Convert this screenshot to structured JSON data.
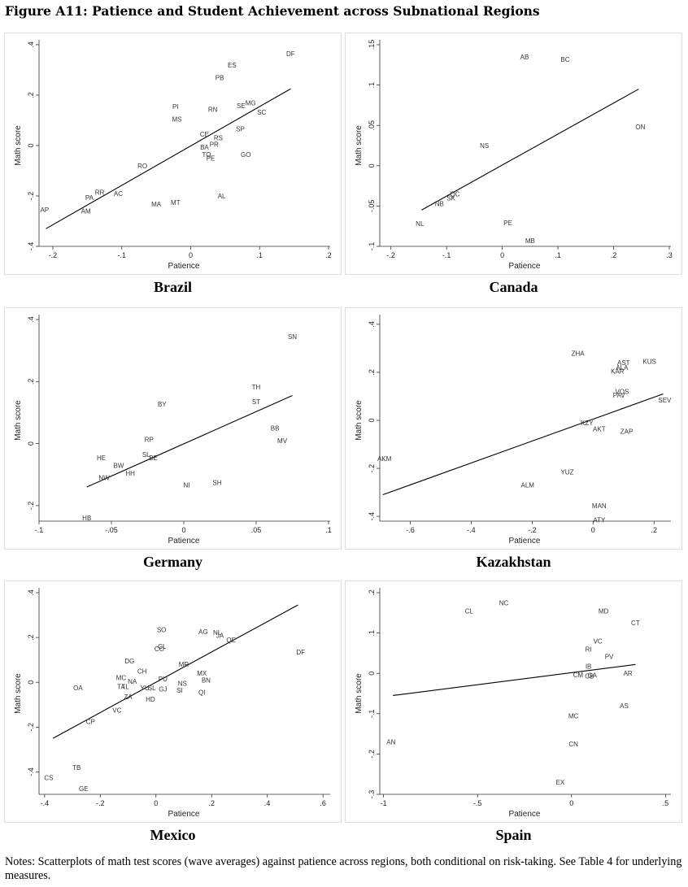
{
  "figure": {
    "title": "Figure A11: Patience and Student Achievement across Subnational Regions",
    "notes": "Notes: Scatterplots of math test scores (wave averages) against patience across regions, both conditional on risk-taking. See Table 4 for underlying measures."
  },
  "chart_data": [
    {
      "type": "scatter",
      "title": "Brazil",
      "xlabel": "Patience",
      "ylabel": "Math score",
      "xlim": [
        -0.22,
        0.2
      ],
      "ylim": [
        -0.4,
        0.4
      ],
      "xticks": [
        -0.2,
        -0.1,
        0,
        0.1,
        0.2
      ],
      "xtick_labels": [
        "-.2",
        "-.1",
        "0",
        ".1",
        ".2"
      ],
      "yticks": [
        -0.4,
        -0.2,
        0,
        0.2,
        0.4
      ],
      "ytick_labels": [
        "-.4",
        "-.2",
        "0",
        ".2",
        ".4"
      ],
      "fit_line": [
        [
          -0.21,
          -0.33
        ],
        [
          0.145,
          0.225
        ]
      ],
      "points": [
        {
          "label": "DF",
          "x": 0.145,
          "y": 0.365
        },
        {
          "label": "ES",
          "x": 0.06,
          "y": 0.32
        },
        {
          "label": "PB",
          "x": 0.042,
          "y": 0.27
        },
        {
          "label": "PI",
          "x": -0.022,
          "y": 0.155
        },
        {
          "label": "MS",
          "x": -0.02,
          "y": 0.105
        },
        {
          "label": "RN",
          "x": 0.032,
          "y": 0.143
        },
        {
          "label": "SE",
          "x": 0.073,
          "y": 0.158
        },
        {
          "label": "MG",
          "x": 0.087,
          "y": 0.17
        },
        {
          "label": "SC",
          "x": 0.103,
          "y": 0.132
        },
        {
          "label": "SP",
          "x": 0.072,
          "y": 0.066
        },
        {
          "label": "CE",
          "x": 0.02,
          "y": 0.045
        },
        {
          "label": "RS",
          "x": 0.04,
          "y": 0.03
        },
        {
          "label": "PR",
          "x": 0.034,
          "y": 0.005
        },
        {
          "label": "BA",
          "x": 0.02,
          "y": -0.007
        },
        {
          "label": "TO",
          "x": 0.023,
          "y": -0.036
        },
        {
          "label": "PE",
          "x": 0.029,
          "y": -0.05
        },
        {
          "label": "GO",
          "x": 0.08,
          "y": -0.035
        },
        {
          "label": "RO",
          "x": -0.07,
          "y": -0.08
        },
        {
          "label": "RR",
          "x": -0.132,
          "y": -0.185
        },
        {
          "label": "AC",
          "x": -0.105,
          "y": -0.19
        },
        {
          "label": "PA",
          "x": -0.147,
          "y": -0.207
        },
        {
          "label": "AL",
          "x": 0.045,
          "y": -0.2
        },
        {
          "label": "MT",
          "x": -0.022,
          "y": -0.225
        },
        {
          "label": "MA",
          "x": -0.05,
          "y": -0.233
        },
        {
          "label": "AM",
          "x": -0.152,
          "y": -0.26
        },
        {
          "label": "AP",
          "x": -0.212,
          "y": -0.255
        }
      ]
    },
    {
      "type": "scatter",
      "title": "Canada",
      "xlabel": "Patience",
      "ylabel": "Math score",
      "xlim": [
        -0.22,
        0.3
      ],
      "ylim": [
        -0.1,
        0.15
      ],
      "xticks": [
        -0.2,
        -0.1,
        0,
        0.1,
        0.2,
        0.3
      ],
      "xtick_labels": [
        "-.2",
        "-.1",
        "0",
        ".1",
        ".2",
        ".3"
      ],
      "yticks": [
        -0.1,
        -0.05,
        0,
        0.05,
        0.1,
        0.15
      ],
      "ytick_labels": [
        "-.1",
        "-.05",
        "0",
        ".05",
        ".1",
        ".15"
      ],
      "fit_line": [
        [
          -0.145,
          -0.055
        ],
        [
          0.245,
          0.095
        ]
      ],
      "points": [
        {
          "label": "AB",
          "x": 0.04,
          "y": 0.135
        },
        {
          "label": "BC",
          "x": 0.113,
          "y": 0.132
        },
        {
          "label": "ON",
          "x": 0.248,
          "y": 0.048
        },
        {
          "label": "NS",
          "x": -0.032,
          "y": 0.025
        },
        {
          "label": "QC",
          "x": -0.085,
          "y": -0.035
        },
        {
          "label": "SK",
          "x": -0.092,
          "y": -0.04
        },
        {
          "label": "NB",
          "x": -0.113,
          "y": -0.047
        },
        {
          "label": "NL",
          "x": -0.148,
          "y": -0.072
        },
        {
          "label": "PE",
          "x": 0.01,
          "y": -0.071
        },
        {
          "label": "MB",
          "x": 0.05,
          "y": -0.093
        }
      ]
    },
    {
      "type": "scatter",
      "title": "Germany",
      "xlabel": "Patience",
      "ylabel": "Math score",
      "xlim": [
        -0.1,
        0.1
      ],
      "ylim": [
        -0.25,
        0.4
      ],
      "xticks": [
        -0.1,
        -0.05,
        0,
        0.05,
        0.1
      ],
      "xtick_labels": [
        "-.1",
        "-.05",
        "0",
        ".05",
        ".1"
      ],
      "yticks": [
        -0.2,
        0,
        0.2,
        0.4
      ],
      "ytick_labels": [
        "-.2",
        "0",
        ".2",
        ".4"
      ],
      "fit_line": [
        [
          -0.067,
          -0.14
        ],
        [
          0.075,
          0.155
        ]
      ],
      "points": [
        {
          "label": "SN",
          "x": 0.075,
          "y": 0.345
        },
        {
          "label": "TH",
          "x": 0.05,
          "y": 0.182
        },
        {
          "label": "ST",
          "x": 0.05,
          "y": 0.135
        },
        {
          "label": "BY",
          "x": -0.015,
          "y": 0.128
        },
        {
          "label": "BB",
          "x": 0.063,
          "y": 0.05
        },
        {
          "label": "MV",
          "x": 0.068,
          "y": 0.01
        },
        {
          "label": "RP",
          "x": -0.024,
          "y": 0.013
        },
        {
          "label": "SL",
          "x": -0.026,
          "y": -0.035
        },
        {
          "label": "HE",
          "x": -0.057,
          "y": -0.045
        },
        {
          "label": "BE",
          "x": -0.021,
          "y": -0.045
        },
        {
          "label": "BW",
          "x": -0.045,
          "y": -0.07
        },
        {
          "label": "HH",
          "x": -0.037,
          "y": -0.095
        },
        {
          "label": "NW",
          "x": -0.055,
          "y": -0.11
        },
        {
          "label": "NI",
          "x": 0.002,
          "y": -0.133
        },
        {
          "label": "SH",
          "x": 0.023,
          "y": -0.125
        },
        {
          "label": "HB",
          "x": -0.067,
          "y": -0.24
        }
      ]
    },
    {
      "type": "scatter",
      "title": "Kazakhstan",
      "xlabel": "Patience",
      "ylabel": "Math score",
      "xlim": [
        -0.7,
        0.25
      ],
      "ylim": [
        -0.42,
        0.42
      ],
      "xticks": [
        -0.6,
        -0.4,
        -0.2,
        0,
        0.2
      ],
      "xtick_labels": [
        "-.6",
        "-.4",
        "-.2",
        "0",
        ".2"
      ],
      "yticks": [
        -0.4,
        -0.2,
        0,
        0.2,
        0.4
      ],
      "ytick_labels": [
        "-.4",
        "-.2",
        "0",
        ".2",
        ".4"
      ],
      "fit_line": [
        [
          -0.69,
          -0.31
        ],
        [
          0.23,
          0.11
        ]
      ],
      "points": [
        {
          "label": "ZHA",
          "x": -0.05,
          "y": 0.28
        },
        {
          "label": "KUS",
          "x": 0.185,
          "y": 0.245
        },
        {
          "label": "AST",
          "x": 0.1,
          "y": 0.24
        },
        {
          "label": "ALA",
          "x": 0.095,
          "y": 0.22
        },
        {
          "label": "KAR",
          "x": 0.08,
          "y": 0.205
        },
        {
          "label": "VOS",
          "x": 0.095,
          "y": 0.12
        },
        {
          "label": "PAV",
          "x": 0.085,
          "y": 0.105
        },
        {
          "label": "SEV",
          "x": 0.235,
          "y": 0.085
        },
        {
          "label": "KZY",
          "x": -0.02,
          "y": -0.01
        },
        {
          "label": "AKT",
          "x": 0.02,
          "y": -0.035
        },
        {
          "label": "ZAP",
          "x": 0.11,
          "y": -0.045
        },
        {
          "label": "AKM",
          "x": -0.685,
          "y": -0.16
        },
        {
          "label": "YUZ",
          "x": -0.085,
          "y": -0.215
        },
        {
          "label": "ALM",
          "x": -0.215,
          "y": -0.27
        },
        {
          "label": "MAN",
          "x": 0.02,
          "y": -0.355
        },
        {
          "label": "ATY",
          "x": 0.02,
          "y": -0.415
        }
      ]
    },
    {
      "type": "scatter",
      "title": "Mexico",
      "xlabel": "Patience",
      "ylabel": "Math score",
      "xlim": [
        -0.42,
        0.62
      ],
      "ylim": [
        -0.5,
        0.4
      ],
      "xticks": [
        -0.4,
        -0.2,
        0,
        0.2,
        0.4,
        0.6
      ],
      "xtick_labels": [
        "-.4",
        "-.2",
        "0",
        ".2",
        ".4",
        ".6"
      ],
      "yticks": [
        -0.4,
        -0.2,
        0,
        0.2,
        0.4
      ],
      "ytick_labels": [
        "-.4",
        "-.2",
        "0",
        ".2",
        ".4"
      ],
      "fit_line": [
        [
          -0.37,
          -0.25
        ],
        [
          0.51,
          0.345
        ]
      ],
      "points": [
        {
          "label": "SO",
          "x": 0.02,
          "y": 0.235
        },
        {
          "label": "AG",
          "x": 0.17,
          "y": 0.225
        },
        {
          "label": "NL",
          "x": 0.22,
          "y": 0.222
        },
        {
          "label": "JA",
          "x": 0.23,
          "y": 0.21
        },
        {
          "label": "QE",
          "x": 0.27,
          "y": 0.19
        },
        {
          "label": "CL",
          "x": 0.022,
          "y": 0.16
        },
        {
          "label": "CO",
          "x": 0.012,
          "y": 0.15
        },
        {
          "label": "DF",
          "x": 0.52,
          "y": 0.135
        },
        {
          "label": "DG",
          "x": -0.095,
          "y": 0.095
        },
        {
          "label": "MR",
          "x": 0.1,
          "y": 0.08
        },
        {
          "label": "CH",
          "x": -0.05,
          "y": 0.05
        },
        {
          "label": "MX",
          "x": 0.165,
          "y": 0.04
        },
        {
          "label": "MC",
          "x": -0.125,
          "y": 0.02
        },
        {
          "label": "PU",
          "x": 0.025,
          "y": 0.015
        },
        {
          "label": "BN",
          "x": 0.18,
          "y": 0.01
        },
        {
          "label": "NA",
          "x": -0.085,
          "y": 0.005
        },
        {
          "label": "NS",
          "x": 0.095,
          "y": -0.005
        },
        {
          "label": "TA",
          "x": -0.125,
          "y": -0.02
        },
        {
          "label": "TL",
          "x": -0.11,
          "y": -0.02
        },
        {
          "label": "YU",
          "x": -0.04,
          "y": -0.025
        },
        {
          "label": "SL",
          "x": -0.015,
          "y": -0.025
        },
        {
          "label": "GJ",
          "x": 0.025,
          "y": -0.03
        },
        {
          "label": "SI",
          "x": 0.085,
          "y": -0.035
        },
        {
          "label": "OA",
          "x": -0.28,
          "y": -0.025
        },
        {
          "label": "QI",
          "x": 0.165,
          "y": -0.045
        },
        {
          "label": "ZA",
          "x": -0.1,
          "y": -0.065
        },
        {
          "label": "HD",
          "x": -0.02,
          "y": -0.075
        },
        {
          "label": "VC",
          "x": -0.14,
          "y": -0.125
        },
        {
          "label": "CP",
          "x": -0.235,
          "y": -0.175
        },
        {
          "label": "TB",
          "x": -0.285,
          "y": -0.38
        },
        {
          "label": "CS",
          "x": -0.385,
          "y": -0.425
        },
        {
          "label": "GE",
          "x": -0.26,
          "y": -0.475
        }
      ]
    },
    {
      "type": "scatter",
      "title": "Spain",
      "xlabel": "Patience",
      "ylabel": "Math score",
      "xlim": [
        -1.02,
        0.52
      ],
      "ylim": [
        -0.3,
        0.2
      ],
      "xticks": [
        -1,
        -0.5,
        0,
        0.5
      ],
      "xtick_labels": [
        "-1",
        "-.5",
        "0",
        ".5"
      ],
      "yticks": [
        -0.3,
        -0.2,
        -0.1,
        0,
        0.1,
        0.2
      ],
      "ytick_labels": [
        "-.3",
        "-.2",
        "-.1",
        "0",
        ".1",
        ".2"
      ],
      "fit_line": [
        [
          -0.95,
          -0.055
        ],
        [
          0.34,
          0.022
        ]
      ],
      "points": [
        {
          "label": "NC",
          "x": -0.36,
          "y": 0.175
        },
        {
          "label": "CL",
          "x": -0.545,
          "y": 0.155
        },
        {
          "label": "MD",
          "x": 0.17,
          "y": 0.155
        },
        {
          "label": "CT",
          "x": 0.34,
          "y": 0.125
        },
        {
          "label": "VC",
          "x": 0.14,
          "y": 0.08
        },
        {
          "label": "RI",
          "x": 0.09,
          "y": 0.06
        },
        {
          "label": "PV",
          "x": 0.2,
          "y": 0.042
        },
        {
          "label": "IB",
          "x": 0.09,
          "y": 0.018
        },
        {
          "label": "CM",
          "x": 0.035,
          "y": -0.004
        },
        {
          "label": "GA",
          "x": 0.11,
          "y": -0.005
        },
        {
          "label": "CB",
          "x": 0.095,
          "y": -0.007
        },
        {
          "label": "AR",
          "x": 0.3,
          "y": 0.0
        },
        {
          "label": "AS",
          "x": 0.28,
          "y": -0.08
        },
        {
          "label": "MC",
          "x": 0.01,
          "y": -0.105
        },
        {
          "label": "AN",
          "x": -0.96,
          "y": -0.17
        },
        {
          "label": "CN",
          "x": 0.01,
          "y": -0.175
        },
        {
          "label": "EX",
          "x": -0.06,
          "y": -0.27
        }
      ]
    }
  ]
}
